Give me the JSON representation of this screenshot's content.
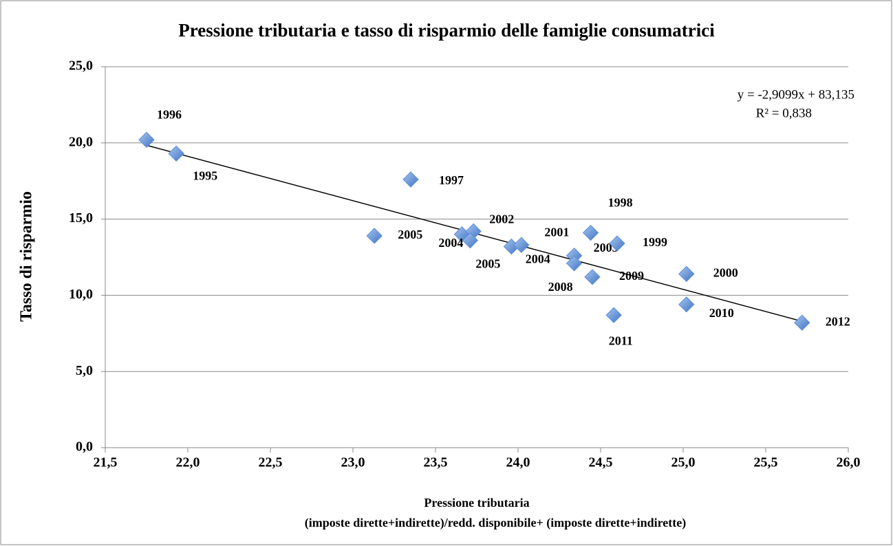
{
  "chart_data": {
    "type": "scatter",
    "title": "Pressione tributaria e tasso di risparmio delle famiglie consumatrici",
    "x_label": "Pressione tributaria",
    "x_label_note": "(imposte dirette+indirette)/redd. disponibile+ (imposte dirette+indirette)",
    "y_label": "Tasso di risparmio",
    "x": [
      21.75,
      21.93,
      23.35,
      23.13,
      23.66,
      23.73,
      23.71,
      23.96,
      24.02,
      24.34,
      24.34,
      24.44,
      24.6,
      24.45,
      25.02,
      25.02,
      24.58,
      25.72
    ],
    "series": [
      {
        "color": "#5b8fd6",
        "values": [
          20.2,
          19.3,
          17.6,
          13.9,
          14.0,
          14.2,
          13.6,
          13.2,
          13.3,
          12.6,
          12.1,
          14.1,
          13.4,
          11.2,
          11.4,
          9.4,
          8.7,
          8.2
        ]
      }
    ],
    "point_labels": [
      "1996",
      "1995",
      "1997",
      "2005",
      "2004",
      "2002",
      "2001",
      "2005",
      "2004",
      "2003",
      "2008",
      "1998",
      "1999",
      "2009",
      "2000",
      "2010",
      "2011",
      "2012"
    ],
    "trendline": {
      "slope": -2.9099,
      "intercept": 83.135,
      "equation": "y = -2,9099x + 83,135",
      "r2": "R² = 0,838",
      "color": "#000000"
    },
    "xlim": [
      21.5,
      26.0
    ],
    "xticks": [
      {
        "value": 21.5,
        "label": "21,5"
      },
      {
        "value": 22.0,
        "label": "22,0"
      },
      {
        "value": 22.5,
        "label": "22,5"
      },
      {
        "value": 23.0,
        "label": "23,0"
      },
      {
        "value": 23.5,
        "label": "23,5"
      },
      {
        "value": 24.0,
        "label": "24,0"
      },
      {
        "value": 24.5,
        "label": "24,5"
      },
      {
        "value": 25.0,
        "label": "25,0"
      },
      {
        "value": 25.5,
        "label": "25,5"
      },
      {
        "value": 26.0,
        "label": "26,0"
      }
    ],
    "ylim": [
      0,
      25
    ],
    "yticks": [
      {
        "value": 0,
        "label": "0,0"
      },
      {
        "value": 5,
        "label": "5,0"
      },
      {
        "value": 10,
        "label": "10,0"
      },
      {
        "value": 15,
        "label": "15,0"
      },
      {
        "value": 20,
        "label": "20,0"
      },
      {
        "value": 25,
        "label": "25,0"
      }
    ],
    "grid": true
  }
}
